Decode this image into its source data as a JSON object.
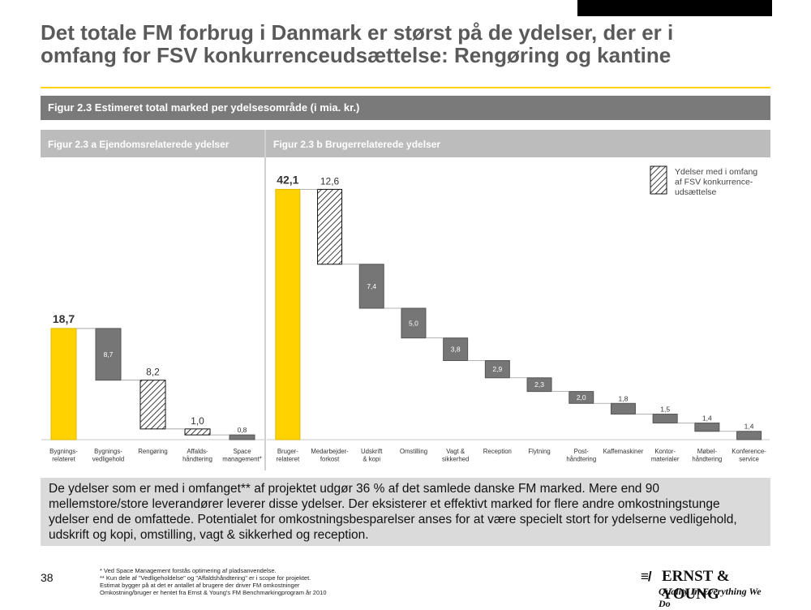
{
  "slide": {
    "title": "Det totale FM forbrug i Danmark er størst på de ydelser, der er i omfang for FSV konkurrenceudsættelse: Rengøring og kantine",
    "figure_header": "Figur 2.3 Estimeret total marked per ydelsesområde (i mia. kr.)",
    "summary": "De ydelser som er med i omfanget** af projektet udgør 36 % af det samlede danske FM marked. Mere end 90 mellemstore/store leverandører leverer disse ydelser. Der eksisterer et effektivt marked for flere andre omkostningstunge ydelser end de omfattede. Potentialet for omkostningsbesparelser anses for at være specielt stort for ydelserne vedligehold, udskrift og kopi, omstilling, vagt & sikkerhed og reception.",
    "page_number": "38",
    "footnotes": [
      "* Ved Space Management forstås optimering af pladsanvendelse.",
      "** Kun dele af \"Vedligeholdelse\" og \"Affaldshåndtering\" er i scope for projektet.",
      "Estimat bygger på at det er antallet af brugere der driver FM omkostninger",
      "Omkostning/bruger er hentet fra Ernst & Young's FM Benchmarkingprogram år 2010"
    ],
    "logo": {
      "mark": "≡/",
      "name": "ERNST & YOUNG",
      "tagline": "Quality In Everything We Do"
    }
  },
  "chart_data": [
    {
      "type": "bar",
      "subtype": "waterfall",
      "title": "Figur 2.3 a Ejendomsrelaterede ydelser",
      "categories": [
        "Bygnings-\nrelateret",
        "Bygnings-\nvedligehold",
        "Rengøring",
        "Affalds-\nhåndtering",
        "Space\nmanagement*"
      ],
      "value_labels": [
        "18,7",
        "8,7",
        "8,2",
        "1,0",
        "0,8"
      ],
      "values": [
        18.7,
        8.7,
        8.2,
        1.0,
        0.8
      ],
      "kinds": [
        "total",
        "step",
        "scope",
        "scope",
        "step"
      ],
      "ylim": [
        0,
        45
      ]
    },
    {
      "type": "bar",
      "subtype": "waterfall",
      "title": "Figur 2.3 b Brugerrelaterede ydelser",
      "categories": [
        "Bruger-\nrelateret",
        "Medarbejder-\nforkost",
        "Udskrift\n& kopi",
        "Omstilling",
        "Vagt &\nsikkerhed",
        "Reception",
        "Flytning",
        "Post-\nhåndtering",
        "Kaffemaskiner",
        "Kontor-\nmaterialer",
        "Møbel-\nhåndtering",
        "Konference-\nservice"
      ],
      "value_labels": [
        "42,1",
        "12,6",
        "7,4",
        "5,0",
        "3,8",
        "2,9",
        "2,3",
        "2,0",
        "1,8",
        "1,5",
        "1,4",
        "1,4"
      ],
      "values": [
        42.1,
        12.6,
        7.4,
        5.0,
        3.8,
        2.9,
        2.3,
        2.0,
        1.8,
        1.5,
        1.4,
        1.4
      ],
      "kinds": [
        "total",
        "scope",
        "step",
        "step",
        "step",
        "step",
        "step",
        "step",
        "step",
        "step",
        "step",
        "step"
      ],
      "ylim": [
        0,
        45
      ],
      "legend": {
        "label": "Ydelser med i omfang\naf FSV konkurrence-\nudsættelse",
        "placement": "top-right"
      }
    }
  ],
  "colors": {
    "total": "#ffd200",
    "step": "#767676",
    "scope_hatch": "#111111",
    "header": "#7a7a7a",
    "subheader": "#bcbcbc",
    "summary_bg": "#dadada",
    "accent_rule": "#ffd200"
  }
}
